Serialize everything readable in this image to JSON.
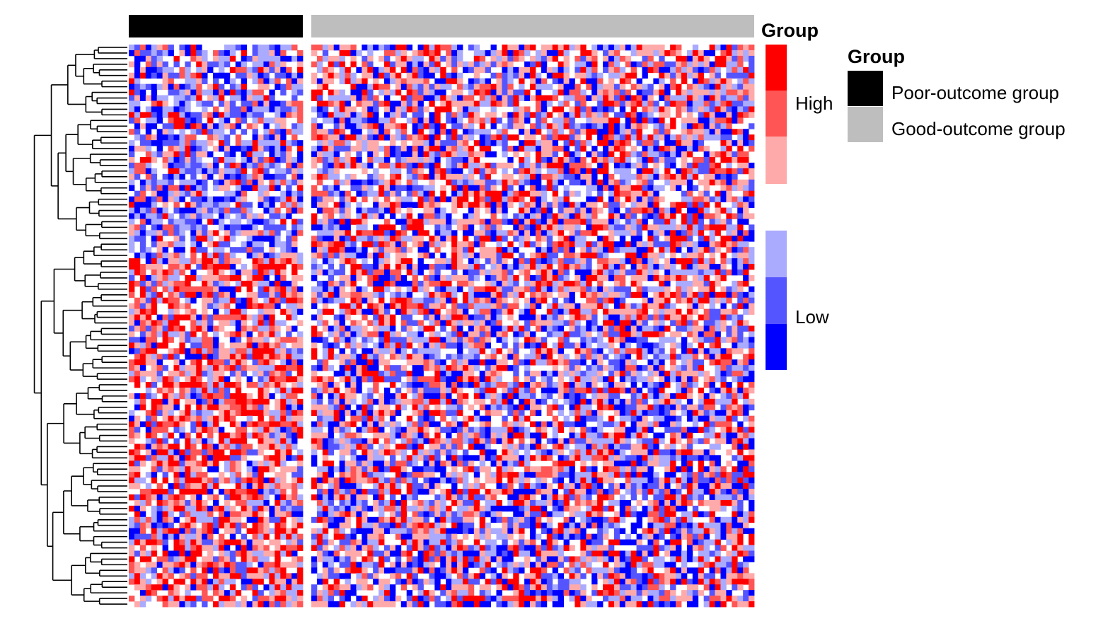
{
  "chart_data": {
    "type": "heatmap",
    "column_annotation": {
      "title": "Group",
      "groups": [
        {
          "name": "Poor-outcome group",
          "color": "#000000",
          "columns": 31
        },
        {
          "name": "Good-outcome group",
          "color": "#BEBEBE",
          "columns": 79
        }
      ]
    },
    "rows": 100,
    "row_dendrogram": true,
    "color_scale": {
      "title": "Group",
      "high_label": "High",
      "low_label": "Low",
      "levels": [
        "#FF0000",
        "#FF5555",
        "#FFAAAA",
        "#FFFFFF",
        "#AAAAFF",
        "#5555FF",
        "#0000FF"
      ]
    },
    "pattern_notes": "Poor-outcome group shows more low (blue) expression in the upper rows and more high (red) expression in the lower rows; Good-outcome group appears mixed."
  },
  "legend": {
    "scale_title": "Group",
    "high": "High",
    "low": "Low",
    "group_title": "Group",
    "items": [
      {
        "label": "Poor-outcome group",
        "color": "#000000"
      },
      {
        "label": "Good-outcome group",
        "color": "#BEBEBE"
      }
    ]
  }
}
